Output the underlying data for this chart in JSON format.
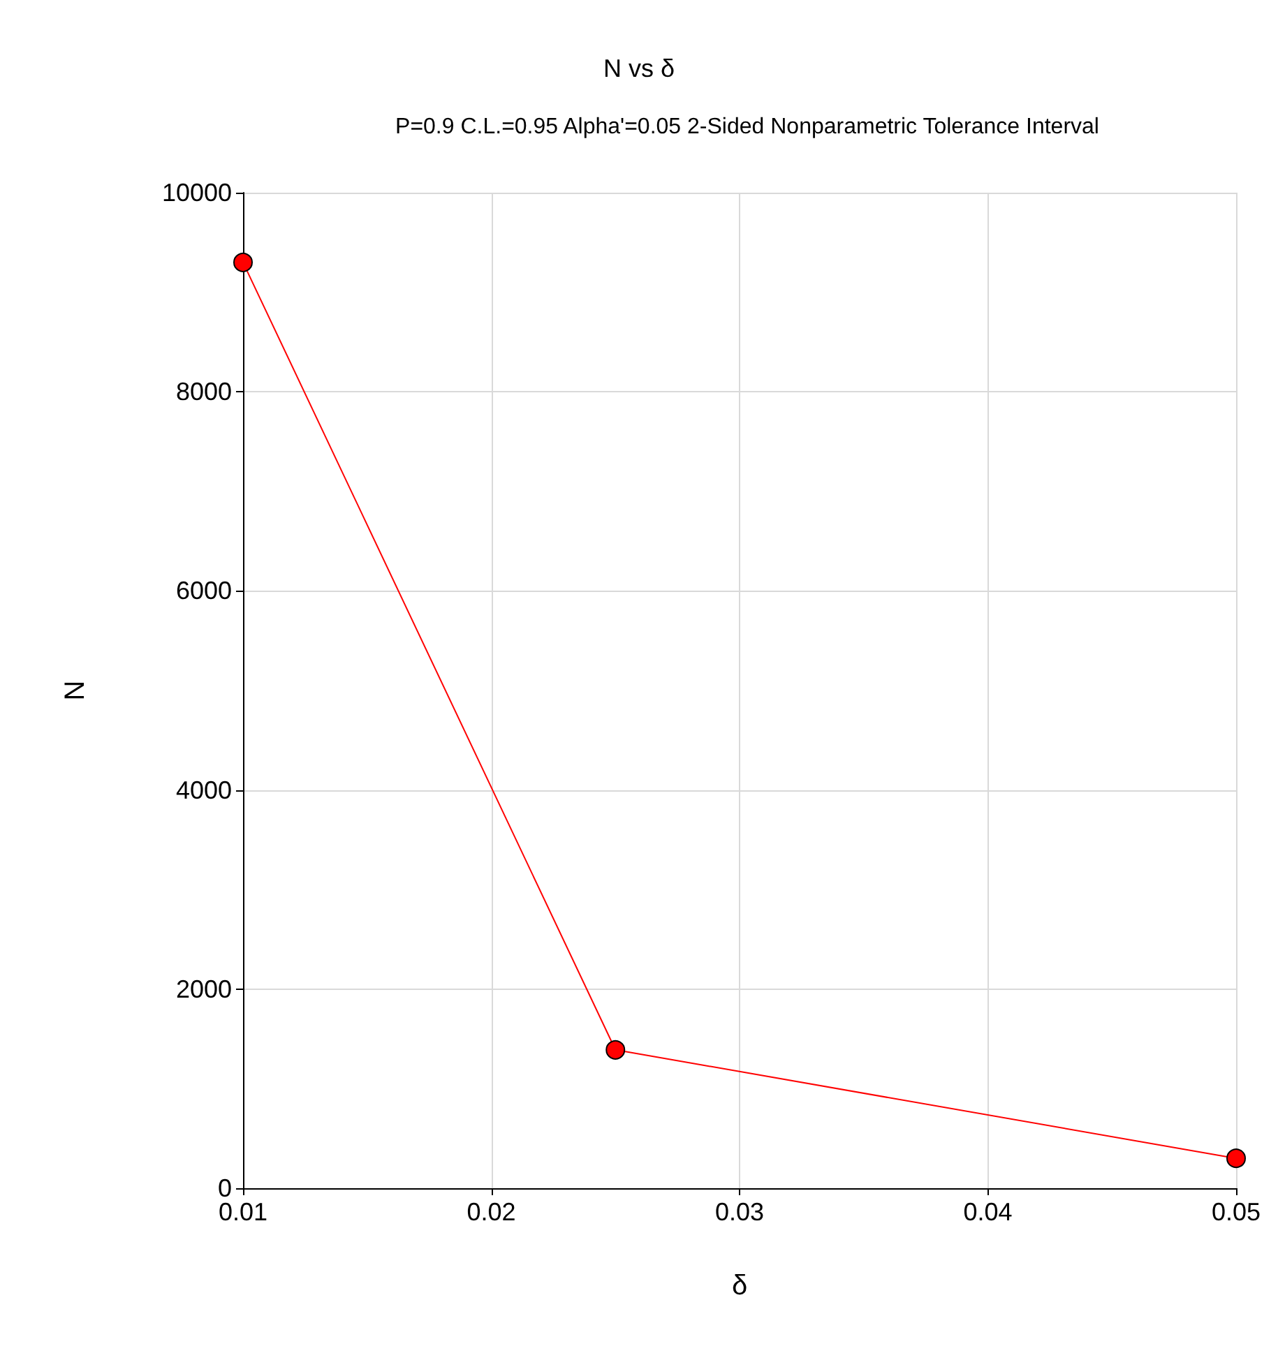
{
  "chart_data": {
    "type": "line",
    "title": "N vs δ",
    "subtitle": "P=0.9 C.L.=0.95 Alpha'=0.05 2-Sided Nonparametric Tolerance Interval",
    "xlabel": "δ",
    "ylabel": "N",
    "x": [
      0.01,
      0.025,
      0.05
    ],
    "series": [
      {
        "color": "#ff0000",
        "values": [
          9300,
          1390,
          300
        ]
      }
    ],
    "xlim": [
      0.01,
      0.05
    ],
    "xticks": [
      0.01,
      0.02,
      0.03,
      0.04,
      0.05
    ],
    "ylim": [
      0,
      10000
    ],
    "yticks": [
      0,
      2000,
      4000,
      6000,
      8000,
      10000
    ],
    "grid": true,
    "marker": "circle",
    "line_style": "solid"
  }
}
